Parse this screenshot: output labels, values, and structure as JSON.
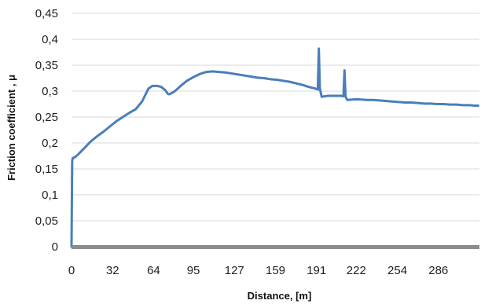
{
  "chart_data": {
    "type": "line",
    "title": "",
    "xlabel": "Distance, [m]",
    "ylabel": "Friction coefficient , μ",
    "x_tick_labels": [
      "0",
      "32",
      "64",
      "95",
      "127",
      "159",
      "191",
      "222",
      "254",
      "286"
    ],
    "x_ticks": [
      0,
      32,
      64,
      95,
      127,
      159,
      191,
      222,
      254,
      286
    ],
    "y_tick_labels": [
      "0",
      "0,05",
      "0,1",
      "0,15",
      "0,2",
      "0,25",
      "0,3",
      "0,35",
      "0,4",
      "0,45"
    ],
    "y_ticks": [
      0,
      0.05,
      0.1,
      0.15,
      0.2,
      0.25,
      0.3,
      0.35,
      0.4,
      0.45
    ],
    "xlim": [
      0,
      318
    ],
    "ylim": [
      0,
      0.45
    ],
    "grid": "horizontal",
    "legend": "none",
    "series": [
      {
        "color": "#4a7ebb",
        "x": [
          0,
          0.5,
          1,
          3,
          6,
          10,
          15,
          20,
          25,
          30,
          35,
          40,
          45,
          50,
          55,
          58,
          60,
          63,
          67,
          70,
          73,
          75,
          76,
          78,
          80,
          82,
          85,
          90,
          95,
          100,
          105,
          110,
          115,
          120,
          125,
          130,
          135,
          140,
          145,
          150,
          155,
          160,
          165,
          170,
          175,
          180,
          185,
          190,
          192,
          192.8,
          193.6,
          194.5,
          195,
          200,
          205,
          210,
          212,
          212.8,
          213.6,
          214.5,
          215,
          220,
          225,
          230,
          235,
          240,
          245,
          250,
          255,
          260,
          265,
          270,
          275,
          280,
          285,
          290,
          295,
          300,
          305,
          310,
          314,
          317
        ],
        "y": [
          0,
          0.165,
          0.171,
          0.173,
          0.18,
          0.19,
          0.203,
          0.213,
          0.222,
          0.232,
          0.242,
          0.25,
          0.258,
          0.265,
          0.28,
          0.295,
          0.305,
          0.31,
          0.31,
          0.308,
          0.302,
          0.295,
          0.294,
          0.296,
          0.299,
          0.303,
          0.31,
          0.32,
          0.327,
          0.333,
          0.337,
          0.338,
          0.337,
          0.336,
          0.334,
          0.332,
          0.33,
          0.328,
          0.326,
          0.325,
          0.323,
          0.322,
          0.32,
          0.318,
          0.315,
          0.312,
          0.308,
          0.305,
          0.303,
          0.382,
          0.305,
          0.295,
          0.289,
          0.291,
          0.291,
          0.291,
          0.29,
          0.34,
          0.29,
          0.285,
          0.283,
          0.284,
          0.284,
          0.283,
          0.283,
          0.282,
          0.281,
          0.28,
          0.279,
          0.278,
          0.278,
          0.277,
          0.276,
          0.276,
          0.275,
          0.275,
          0.274,
          0.274,
          0.273,
          0.273,
          0.272,
          0.272
        ]
      }
    ]
  }
}
